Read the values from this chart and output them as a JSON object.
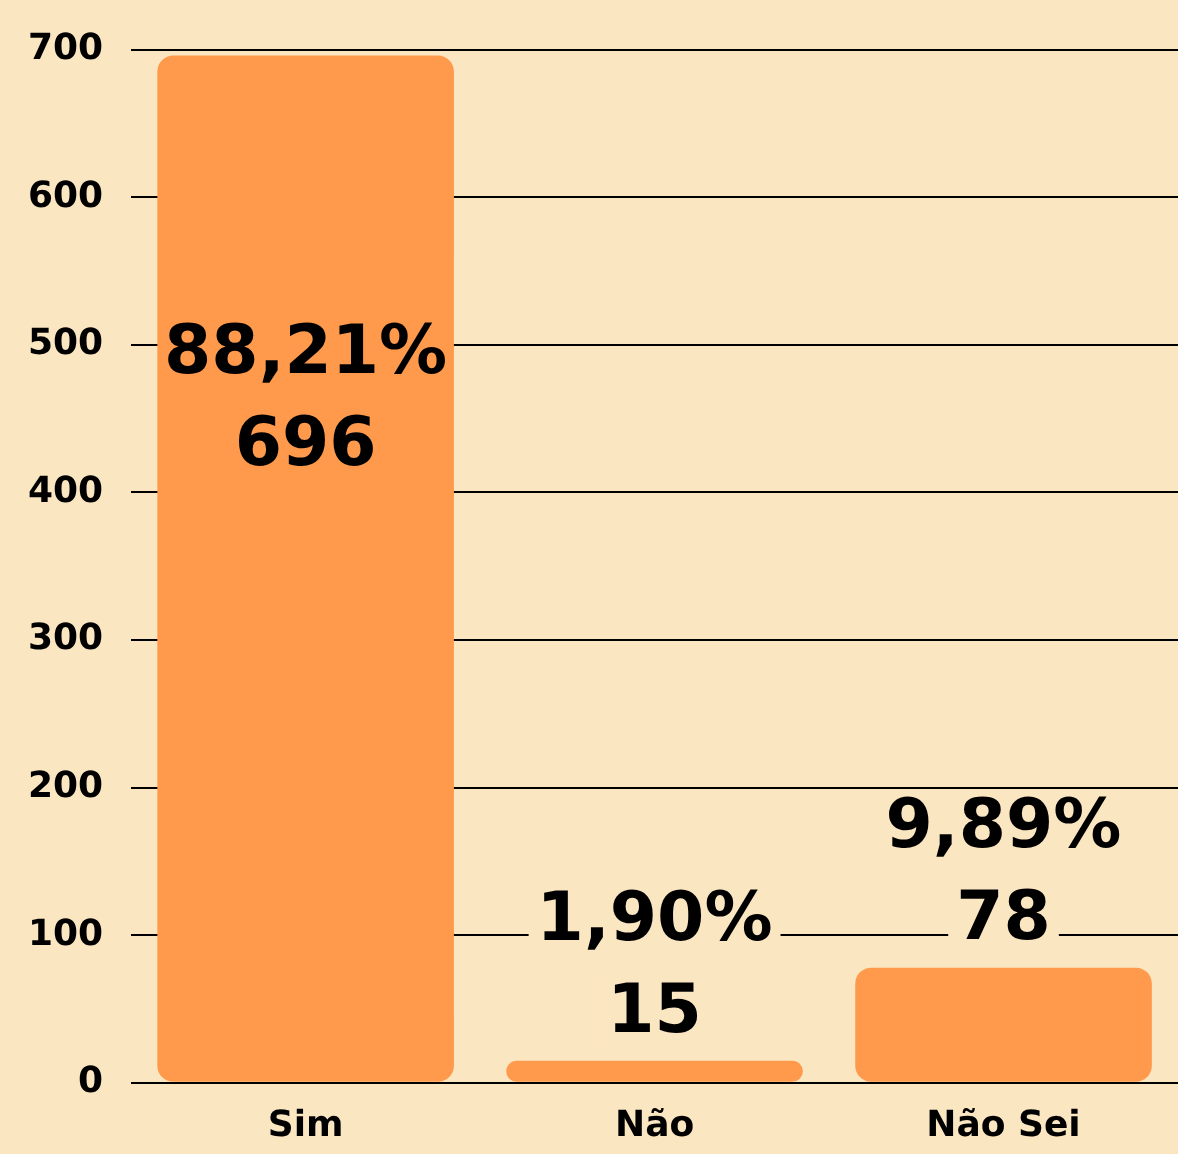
{
  "chart_data": {
    "type": "bar",
    "categories": [
      "Sim",
      "Não",
      "Não Sei"
    ],
    "values": [
      696,
      15,
      78
    ],
    "color": "#ff9a4d",
    "value_labels": [
      "88,21%\n696",
      "1,90%\n15",
      "9,89%\n78"
    ],
    "ylim": [
      0,
      700
    ],
    "yticks": [
      0,
      100,
      200,
      300,
      400,
      500,
      600,
      700
    ],
    "grid": "y",
    "legend": false
  }
}
